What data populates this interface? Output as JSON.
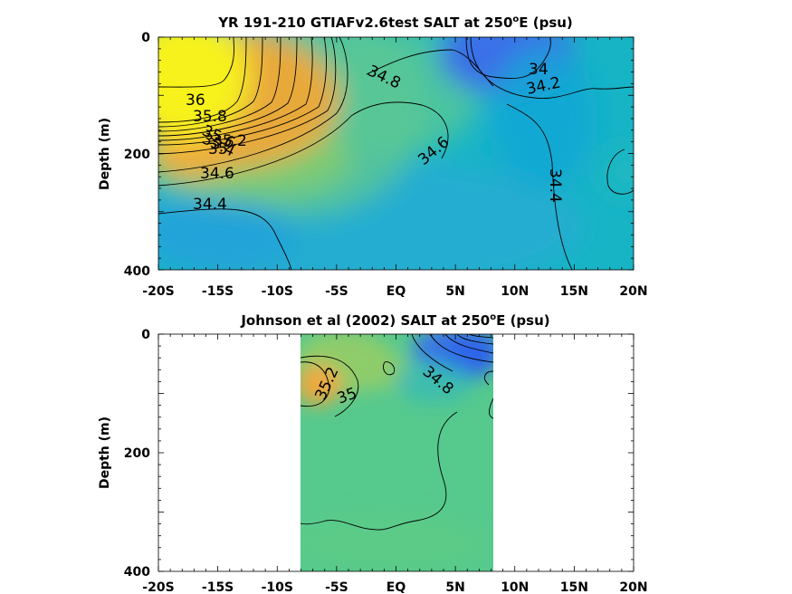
{
  "figure": {
    "panels": [
      {
        "title_main": "YR 191-210 GTIAFv2.6test SALT at 250",
        "title_sup": "o",
        "title_tail": "E (psu)",
        "ylabel": "Depth (m)",
        "x_ticks": [
          "-20S",
          "-15S",
          "-10S",
          "-5S",
          "EQ",
          "5N",
          "10N",
          "15N",
          "20N"
        ],
        "y_ticks": [
          "0",
          "200",
          "400"
        ],
        "contour_labels": [
          "36",
          "35.8",
          "35.6",
          "35.4",
          "35.2",
          "35",
          "34.6",
          "34.4",
          "34.8",
          "34.6",
          "34",
          "34.2",
          "34.4"
        ]
      },
      {
        "title_main": "Johnson et al (2002) SALT at 250",
        "title_sup": "o",
        "title_tail": "E (psu)",
        "ylabel": "Depth (m)",
        "x_ticks": [
          "-20S",
          "-15S",
          "-10S",
          "-5S",
          "EQ",
          "5N",
          "10N",
          "15N",
          "20N"
        ],
        "y_ticks": [
          "0",
          "200",
          "400"
        ],
        "contour_labels": [
          "35.2",
          "35",
          "34.8"
        ]
      }
    ]
  },
  "chart_data": [
    {
      "type": "heatmap",
      "title": "YR 191-210 GTIAFv2.6test SALT at 250°E (psu)",
      "xlabel": "",
      "ylabel": "Depth (m)",
      "x_range_deg": [
        -20,
        20
      ],
      "y_range_m": [
        0,
        400
      ],
      "y_reversed": true,
      "grid": false,
      "colors": {
        "high": "#f4f41e",
        "mid_high": "#f2a63d",
        "mid": "#12b3c8",
        "low": "#3566e8"
      },
      "contours": [
        {
          "level": 36,
          "label_at": [
            -16.8,
            105
          ]
        },
        {
          "level": 35.8,
          "label_at": [
            -15.5,
            130
          ]
        },
        {
          "level": 35.6,
          "label_at": [
            -15,
            145
          ]
        },
        {
          "level": 35.4,
          "label_at": [
            -15.3,
            158
          ]
        },
        {
          "level": 35.2,
          "label_at": [
            -14,
            170
          ]
        },
        {
          "level": 35,
          "label_at": [
            -16,
            183
          ]
        },
        {
          "level": 34.6,
          "label_at": [
            -14.5,
            228
          ]
        },
        {
          "level": 34.4,
          "label_at": [
            -16.5,
            283
          ]
        },
        {
          "level": 34.8,
          "label_at": [
            -0.5,
            72
          ]
        },
        {
          "level": 34.6,
          "label_at": [
            3.8,
            195
          ]
        },
        {
          "level": 34,
          "label_at": [
            12.3,
            55
          ]
        },
        {
          "level": 34.2,
          "label_at": [
            12.5,
            82
          ]
        },
        {
          "level": 34.4,
          "label_at": [
            15.8,
            290
          ]
        }
      ]
    },
    {
      "type": "heatmap",
      "title": "Johnson et al (2002) SALT at 250°E (psu)",
      "xlabel": "",
      "ylabel": "Depth (m)",
      "x_range_deg": [
        -20,
        20
      ],
      "y_range_m": [
        0,
        400
      ],
      "y_reversed": true,
      "data_x_extent_deg": [
        -8,
        8
      ],
      "grid": false,
      "colors": {
        "high": "#f2a63d",
        "mid": "#58c78f",
        "low": "#3566e8"
      },
      "contours": [
        {
          "level": 35.2,
          "label_at": [
            -5.2,
            80
          ]
        },
        {
          "level": 35,
          "label_at": [
            -3.7,
            105
          ]
        },
        {
          "level": 34.8,
          "label_at": [
            3.7,
            80
          ]
        }
      ]
    }
  ]
}
